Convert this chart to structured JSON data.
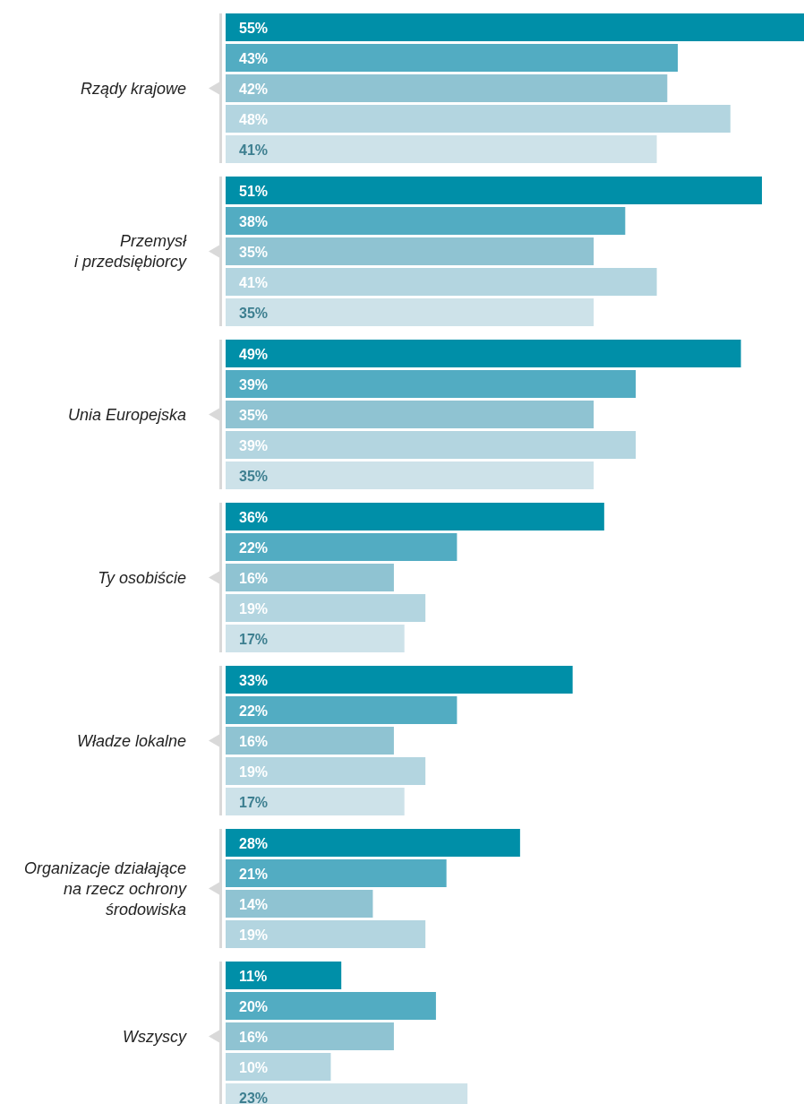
{
  "chart_data": {
    "type": "bar",
    "orientation": "horizontal",
    "tick_labels": "y",
    "categories": [
      "Rządy krajowe",
      "Przemysł\ni przedsiębiorcy",
      "Unia Europejska",
      "Ty osobiście",
      "Władze lokalne",
      "Organizacje działające\nna rzecz ochrony\nśrodowiska",
      "Wszyscy"
    ],
    "series": [
      {
        "color": "#008fa8",
        "values": [
          55,
          51,
          49,
          36,
          33,
          28,
          11
        ],
        "value_labels": [
          "55%",
          "51%",
          "49%",
          "36%",
          "33%",
          "28%",
          "11%"
        ]
      },
      {
        "color": "#52acc2",
        "values": [
          43,
          38,
          39,
          22,
          22,
          21,
          20
        ],
        "value_labels": [
          "43%",
          "38%",
          "39%",
          "22%",
          "22%",
          "21%",
          "20%"
        ]
      },
      {
        "color": "#8fc3d2",
        "values": [
          42,
          35,
          35,
          16,
          16,
          14,
          16
        ],
        "value_labels": [
          "42%",
          "35%",
          "35%",
          "16%",
          "16%",
          "14%",
          "16%"
        ]
      },
      {
        "color": "#b3d5e0",
        "values": [
          48,
          41,
          39,
          19,
          19,
          19,
          10
        ],
        "value_labels": [
          "48%",
          "41%",
          "39%",
          "19%",
          "19%",
          "19%",
          "10%"
        ]
      },
      {
        "color": "#cde2e9",
        "values": [
          41,
          35,
          35,
          17,
          17,
          null,
          23
        ],
        "value_labels": [
          "41%",
          "35%",
          "35%",
          "17%",
          "17%",
          null,
          "23%"
        ]
      }
    ]
  }
}
